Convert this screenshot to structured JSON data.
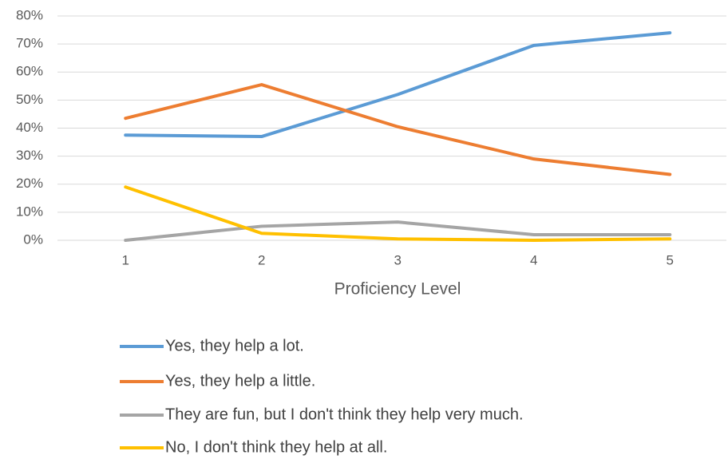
{
  "chart_data": {
    "type": "line",
    "x_label": "Proficiency Level",
    "categories": [
      "1",
      "2",
      "3",
      "4",
      "5"
    ],
    "series": [
      {
        "name": "Yes, they help a lot.",
        "color": "#5b9bd5",
        "values": [
          37.5,
          37,
          52,
          69.5,
          74
        ]
      },
      {
        "name": "Yes, they help a little.",
        "color": "#ed7d31",
        "values": [
          43.5,
          55.5,
          40.5,
          29,
          23.5
        ]
      },
      {
        "name": "They are fun, but I don't think they help very much.",
        "color": "#a5a5a5",
        "values": [
          0,
          5,
          6.5,
          2,
          2
        ]
      },
      {
        "name": "No, I don't think they help at all.",
        "color": "#ffc000",
        "values": [
          19,
          2.5,
          0.5,
          0,
          0.5
        ]
      }
    ],
    "ylim": [
      0,
      80
    ],
    "yticks": [
      {
        "value": 0,
        "label": "0%"
      },
      {
        "value": 10,
        "label": "10%"
      },
      {
        "value": 20,
        "label": "20%"
      },
      {
        "value": 30,
        "label": "30%"
      },
      {
        "value": 40,
        "label": "40%"
      },
      {
        "value": 50,
        "label": "50%"
      },
      {
        "value": 60,
        "label": "60%"
      },
      {
        "value": 70,
        "label": "70%"
      },
      {
        "value": 80,
        "label": "80%"
      }
    ],
    "grid": true,
    "legend": "bottom"
  }
}
